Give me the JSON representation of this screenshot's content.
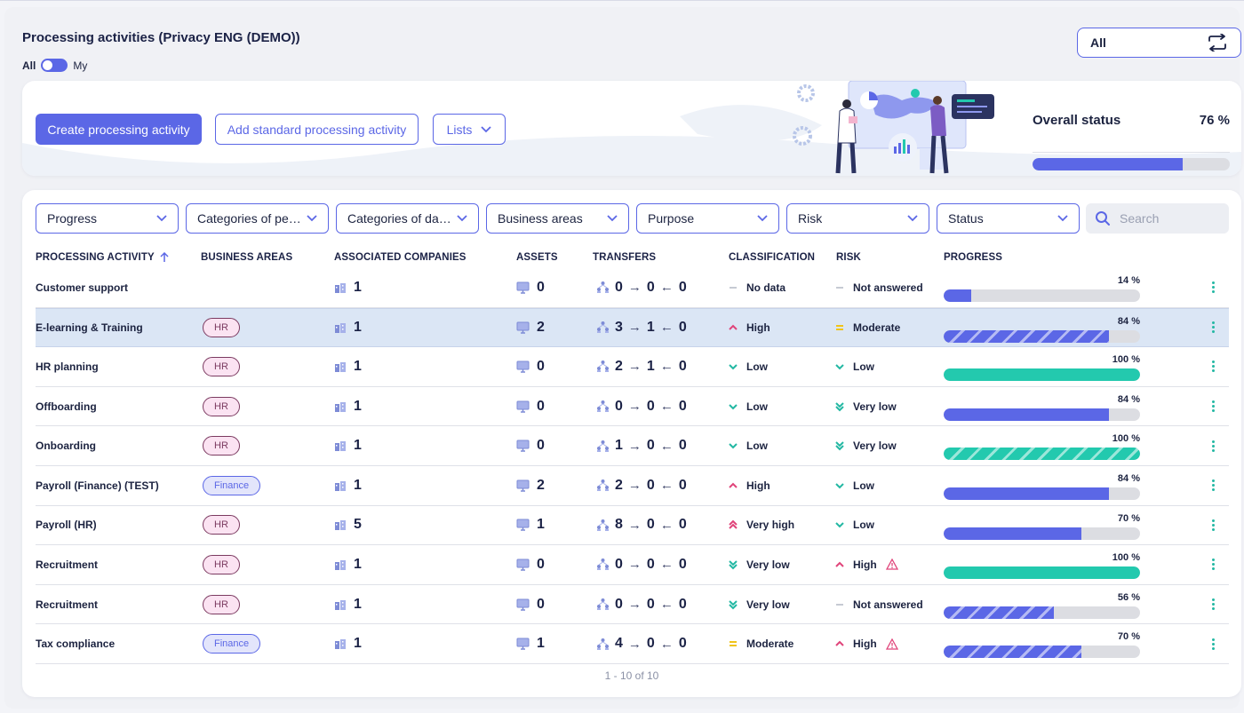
{
  "header": {
    "title": "Processing activities (Privacy ENG (DEMO))",
    "toggle_left": "All",
    "toggle_right": "My",
    "scope_value": "All"
  },
  "hero": {
    "create_label": "Create processing activity",
    "standard_label": "Add standard processing activity",
    "lists_label": "Lists",
    "overall_label": "Overall status",
    "overall_value": "76 %",
    "overall_fraction": 0.76
  },
  "filters": [
    "Progress",
    "Categories of personal data",
    "Categories of data subjects",
    "Business areas",
    "Purpose",
    "Risk",
    "Status"
  ],
  "search": {
    "placeholder": "Search"
  },
  "columns": {
    "activity": "PROCESSING ACTIVITY",
    "areas": "BUSINESS AREAS",
    "companies": "ASSOCIATED COMPANIES",
    "assets": "ASSETS",
    "transfers": "TRANSFERS",
    "classification": "CLASSIFICATION",
    "risk": "RISK",
    "progress": "PROGRESS"
  },
  "rows": [
    {
      "name": "Customer support",
      "area": "",
      "companies": "1",
      "assets": "0",
      "t_in": "0",
      "t_mid": "0",
      "t_out": "0",
      "classification": "No data",
      "class_icon": "dash-icon",
      "risk": "Not answered",
      "risk_icon": "dash-icon",
      "warn": false,
      "progress": "14 %",
      "fraction": 0.14,
      "color": "#5b67e6",
      "striped": false
    },
    {
      "name": "E-learning & Training",
      "area": "HR",
      "companies": "1",
      "assets": "2",
      "t_in": "3",
      "t_mid": "1",
      "t_out": "0",
      "classification": "High",
      "class_icon": "chevron-up-icon",
      "risk": "Moderate",
      "risk_icon": "equals-icon",
      "warn": false,
      "progress": "84 %",
      "fraction": 0.84,
      "color": "#5b67e6",
      "striped": true,
      "selected": true
    },
    {
      "name": "HR planning",
      "area": "HR",
      "companies": "1",
      "assets": "0",
      "t_in": "2",
      "t_mid": "1",
      "t_out": "0",
      "classification": "Low",
      "class_icon": "chevron-down-icon",
      "risk": "Low",
      "risk_icon": "chevron-down-icon",
      "warn": false,
      "progress": "100 %",
      "fraction": 1.0,
      "color": "#23c9ae",
      "striped": false
    },
    {
      "name": "Offboarding",
      "area": "HR",
      "companies": "1",
      "assets": "0",
      "t_in": "0",
      "t_mid": "0",
      "t_out": "0",
      "classification": "Low",
      "class_icon": "chevron-down-icon",
      "risk": "Very low",
      "risk_icon": "double-chevron-down-icon",
      "warn": false,
      "progress": "84 %",
      "fraction": 0.84,
      "color": "#5b67e6",
      "striped": false
    },
    {
      "name": "Onboarding",
      "area": "HR",
      "companies": "1",
      "assets": "0",
      "t_in": "1",
      "t_mid": "0",
      "t_out": "0",
      "classification": "Low",
      "class_icon": "chevron-down-icon",
      "risk": "Very low",
      "risk_icon": "double-chevron-down-icon",
      "warn": false,
      "progress": "100 %",
      "fraction": 1.0,
      "color": "#23c9ae",
      "striped": true
    },
    {
      "name": "Payroll (Finance) (TEST)",
      "area": "Finance",
      "companies": "1",
      "assets": "2",
      "t_in": "2",
      "t_mid": "0",
      "t_out": "0",
      "classification": "High",
      "class_icon": "chevron-up-icon",
      "risk": "Low",
      "risk_icon": "chevron-down-icon",
      "warn": false,
      "progress": "84 %",
      "fraction": 0.84,
      "color": "#5b67e6",
      "striped": false
    },
    {
      "name": "Payroll (HR)",
      "area": "HR",
      "companies": "5",
      "assets": "1",
      "t_in": "8",
      "t_mid": "0",
      "t_out": "0",
      "classification": "Very high",
      "class_icon": "double-chevron-up-icon",
      "risk": "Low",
      "risk_icon": "chevron-down-icon",
      "warn": false,
      "progress": "70 %",
      "fraction": 0.7,
      "color": "#5b67e6",
      "striped": false
    },
    {
      "name": "Recruitment",
      "area": "HR",
      "companies": "1",
      "assets": "0",
      "t_in": "0",
      "t_mid": "0",
      "t_out": "0",
      "classification": "Very low",
      "class_icon": "double-chevron-down-icon",
      "risk": "High",
      "risk_icon": "chevron-up-icon",
      "warn": true,
      "progress": "100 %",
      "fraction": 1.0,
      "color": "#23c9ae",
      "striped": false
    },
    {
      "name": "Recruitment",
      "area": "HR",
      "companies": "1",
      "assets": "0",
      "t_in": "0",
      "t_mid": "0",
      "t_out": "0",
      "classification": "Very low",
      "class_icon": "double-chevron-down-icon",
      "risk": "Not answered",
      "risk_icon": "dash-icon",
      "warn": false,
      "progress": "56 %",
      "fraction": 0.56,
      "color": "#5b67e6",
      "striped": true
    },
    {
      "name": "Tax compliance",
      "area": "Finance",
      "companies": "1",
      "assets": "1",
      "t_in": "4",
      "t_mid": "0",
      "t_out": "0",
      "classification": "Moderate",
      "class_icon": "equals-icon",
      "risk": "High",
      "risk_icon": "chevron-up-icon",
      "warn": true,
      "progress": "70 %",
      "fraction": 0.7,
      "color": "#5b67e6",
      "striped": true
    }
  ],
  "pager": "1 - 10 of 10",
  "icon_colors": {
    "dash-icon": "#b8bcc8",
    "chevron-up-icon": "#e0447a",
    "double-chevron-up-icon": "#e0447a",
    "chevron-down-icon": "#23b8a3",
    "double-chevron-down-icon": "#23b8a3",
    "equals-icon": "#f0c419"
  }
}
